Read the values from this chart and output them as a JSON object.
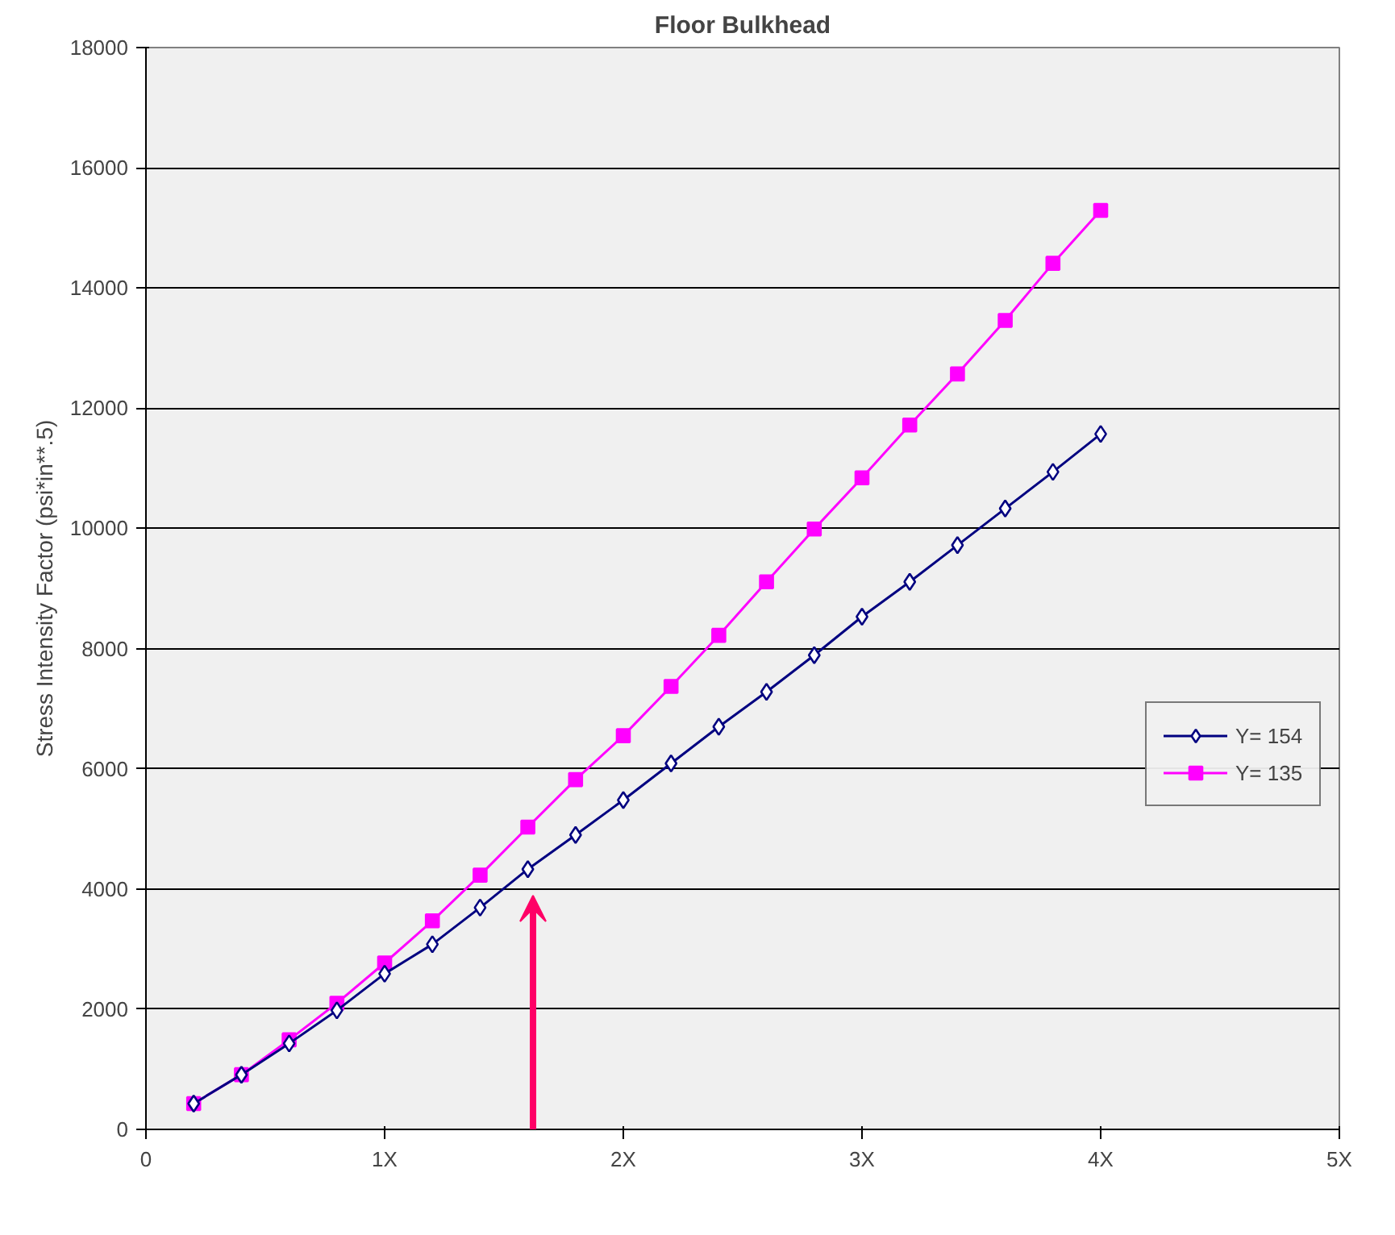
{
  "chart_data": {
    "type": "line",
    "title": "Floor Bulkhead",
    "ylabel": "Stress Intensity Factor (psi*in**.5)",
    "x": [
      0.2,
      0.4,
      0.6,
      0.8,
      1.0,
      1.2,
      1.4,
      1.6,
      1.8,
      2.0,
      2.2,
      2.4,
      2.6,
      2.8,
      3.0,
      3.2,
      3.4,
      3.6,
      3.8,
      4.0
    ],
    "series": [
      {
        "name": "Y= 154",
        "color": "#000080",
        "marker": "diamond",
        "values": [
          430,
          910,
          1430,
          1980,
          2590,
          3080,
          3690,
          4330,
          4900,
          5480,
          6090,
          6700,
          7280,
          7890,
          8530,
          9110,
          9720,
          10330,
          10940,
          11570
        ]
      },
      {
        "name": "Y= 135",
        "color": "#ff00ff",
        "marker": "square",
        "values": [
          430,
          910,
          1490,
          2100,
          2770,
          3470,
          4230,
          5030,
          5820,
          6550,
          7370,
          8220,
          9110,
          9990,
          10840,
          11720,
          12570,
          13460,
          14410,
          15290
        ]
      }
    ],
    "xlim": [
      0,
      5
    ],
    "xticks": [
      0,
      {
        "value": 1,
        "label": "1X"
      },
      {
        "value": 2,
        "label": "2X"
      },
      {
        "value": 3,
        "label": "3X"
      },
      {
        "value": 4,
        "label": "4X"
      },
      {
        "value": 5,
        "label": "5X"
      }
    ],
    "ylim": [
      0,
      18000
    ],
    "yticks": [
      0,
      2000,
      4000,
      6000,
      8000,
      10000,
      12000,
      14000,
      16000,
      18000
    ],
    "grid": "y",
    "legend": "right",
    "line_style": "solid"
  }
}
